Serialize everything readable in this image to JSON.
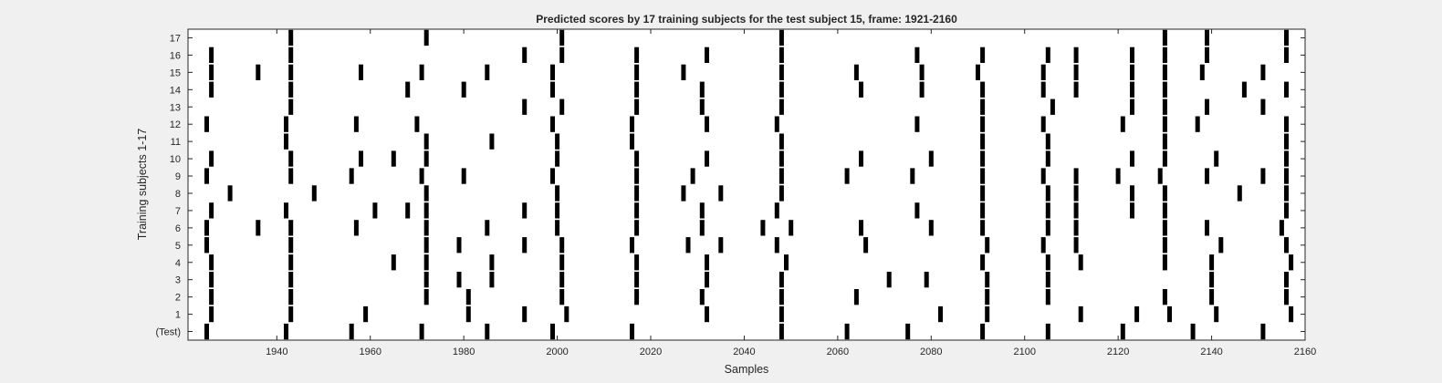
{
  "chart_data": {
    "type": "heatmap",
    "title": "Predicted scores by 17 training subjects for the test subject 15, frame: 1921-2160",
    "xlabel": "Samples",
    "ylabel": "Training subjects 1-17",
    "xlim": [
      1921,
      2160
    ],
    "xticks": [
      1940,
      1960,
      1980,
      2000,
      2020,
      2040,
      2060,
      2080,
      2100,
      2120,
      2140,
      2160
    ],
    "grid": false,
    "legend": "none",
    "colors": {
      "background": "#f0f0f0",
      "plot_bg": "#ffffff",
      "mark": "#000000",
      "text": "#262626"
    },
    "rows": [
      {
        "label": "(Test)",
        "x": [
          1925,
          1942,
          1956,
          1971,
          1985,
          1999,
          2016,
          2048,
          2062,
          2075,
          2091,
          2105,
          2121,
          2136,
          2151
        ]
      },
      {
        "label": "1",
        "x": [
          1926,
          1943,
          1959,
          1981,
          1993,
          2002,
          2032,
          2048,
          2082,
          2092,
          2112,
          2124,
          2131,
          2141,
          2157
        ]
      },
      {
        "label": "2",
        "x": [
          1926,
          1943,
          1972,
          1981,
          2001,
          2017,
          2031,
          2048,
          2064,
          2092,
          2105,
          2130,
          2140,
          2156
        ]
      },
      {
        "label": "3",
        "x": [
          1926,
          1943,
          1972,
          1979,
          1986,
          2001,
          2017,
          2032,
          2048,
          2071,
          2079,
          2092,
          2105,
          2140,
          2156
        ]
      },
      {
        "label": "4",
        "x": [
          1926,
          1943,
          1965,
          1972,
          1986,
          2001,
          2017,
          2032,
          2049,
          2091,
          2105,
          2112,
          2130,
          2140,
          2157
        ]
      },
      {
        "label": "5",
        "x": [
          1925,
          1943,
          1972,
          1979,
          1993,
          2001,
          2016,
          2028,
          2035,
          2047,
          2066,
          2092,
          2104,
          2111,
          2130,
          2142,
          2156
        ]
      },
      {
        "label": "6",
        "x": [
          1925,
          1936,
          1943,
          1957,
          1972,
          1985,
          2000,
          2017,
          2031,
          2044,
          2050,
          2065,
          2080,
          2091,
          2105,
          2111,
          2130,
          2139,
          2155
        ]
      },
      {
        "label": "7",
        "x": [
          1926,
          1942,
          1961,
          1968,
          1972,
          1993,
          2000,
          2017,
          2031,
          2047,
          2077,
          2091,
          2105,
          2111,
          2123,
          2130,
          2156
        ]
      },
      {
        "label": "8",
        "x": [
          1930,
          1948,
          1972,
          2000,
          2017,
          2027,
          2035,
          2048,
          2091,
          2105,
          2111,
          2123,
          2130,
          2146,
          2156
        ]
      },
      {
        "label": "9",
        "x": [
          1925,
          1943,
          1956,
          1971,
          1980,
          1999,
          2017,
          2029,
          2048,
          2062,
          2076,
          2091,
          2104,
          2111,
          2120,
          2129,
          2139,
          2151,
          2156
        ]
      },
      {
        "label": "10",
        "x": [
          1926,
          1943,
          1958,
          1965,
          1972,
          2000,
          2017,
          2032,
          2048,
          2065,
          2080,
          2091,
          2105,
          2123,
          2130,
          2141,
          2156
        ]
      },
      {
        "label": "11",
        "x": [
          1942,
          1972,
          1986,
          2000,
          2016,
          2048,
          2091,
          2105,
          2130,
          2156
        ]
      },
      {
        "label": "12",
        "x": [
          1925,
          1942,
          1957,
          1970,
          1999,
          2016,
          2032,
          2047,
          2077,
          2091,
          2104,
          2121,
          2130,
          2137,
          2156
        ]
      },
      {
        "label": "13",
        "x": [
          1943,
          1993,
          2001,
          2017,
          2031,
          2048,
          2091,
          2106,
          2123,
          2130,
          2139,
          2151
        ]
      },
      {
        "label": "14",
        "x": [
          1926,
          1943,
          1968,
          1980,
          1999,
          2017,
          2031,
          2048,
          2065,
          2078,
          2091,
          2104,
          2111,
          2123,
          2130,
          2147,
          2156
        ]
      },
      {
        "label": "15",
        "x": [
          1926,
          1936,
          1943,
          1958,
          1971,
          1985,
          1999,
          2017,
          2027,
          2048,
          2064,
          2078,
          2090,
          2104,
          2111,
          2123,
          2130,
          2138,
          2151
        ]
      },
      {
        "label": "16",
        "x": [
          1926,
          1943,
          1993,
          2001,
          2017,
          2032,
          2048,
          2077,
          2091,
          2105,
          2111,
          2123,
          2130,
          2139,
          2156
        ]
      },
      {
        "label": "17",
        "x": [
          1943,
          1972,
          2001,
          2048,
          2130,
          2139,
          2156
        ]
      }
    ]
  }
}
